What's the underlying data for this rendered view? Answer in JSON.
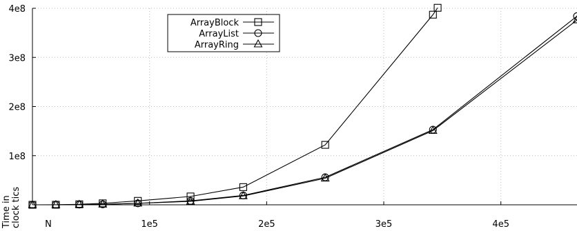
{
  "chart_data": {
    "type": "line",
    "title": "",
    "xlabel": "N",
    "ylabel": "Time in clock tics",
    "ylabel_lines": [
      "Time in",
      "clock tics"
    ],
    "xlim": [
      0,
      465000
    ],
    "ylim": [
      0,
      400000000
    ],
    "grid": true,
    "legend_position": "top-center",
    "x_ticks": [
      {
        "value": 100000,
        "label": "1e5"
      },
      {
        "value": 200000,
        "label": "2e5"
      },
      {
        "value": 300000,
        "label": "3e5"
      },
      {
        "value": 400000,
        "label": "4e5"
      }
    ],
    "y_ticks": [
      {
        "value": 100000000,
        "label": "1e8"
      },
      {
        "value": 200000000,
        "label": "2e8"
      },
      {
        "value": 300000000,
        "label": "3e8"
      },
      {
        "value": 400000000,
        "label": "4e8"
      }
    ],
    "series": [
      {
        "name": "ArrayBlock",
        "marker": "square",
        "x": [
          0,
          20000,
          40000,
          60000,
          90000,
          135000,
          180000,
          250000,
          342000,
          346000
        ],
        "y": [
          0,
          100000,
          1000000,
          3000000,
          8000000,
          17000000,
          36000000,
          122000000,
          387000000,
          401000000
        ]
      },
      {
        "name": "ArrayList",
        "marker": "circle",
        "x": [
          0,
          20000,
          40000,
          60000,
          90000,
          135000,
          180000,
          250000,
          342000,
          465000
        ],
        "y": [
          0,
          0,
          500000,
          1000000,
          3000000,
          8000000,
          19000000,
          56000000,
          153000000,
          384000000
        ]
      },
      {
        "name": "ArrayRing",
        "marker": "triangle",
        "x": [
          0,
          20000,
          40000,
          60000,
          90000,
          135000,
          180000,
          250000,
          342000,
          465000
        ],
        "y": [
          0,
          0,
          500000,
          1000000,
          3000000,
          7000000,
          18000000,
          54000000,
          151000000,
          376000000
        ]
      }
    ]
  },
  "colors": {
    "line": "#000000",
    "grid": "#bbbbbb",
    "background": "#ffffff"
  }
}
